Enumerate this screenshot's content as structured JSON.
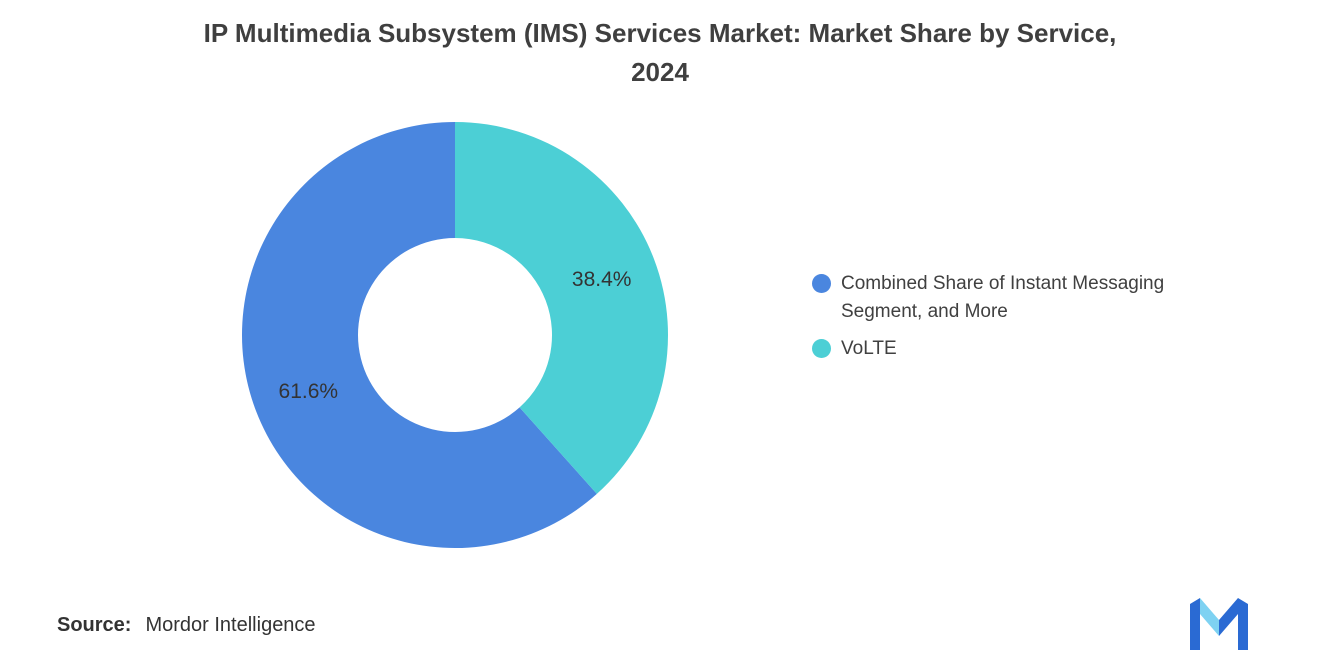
{
  "title": {
    "line1": "IP Multimedia Subsystem (IMS) Services Market: Market Share by Service,",
    "line2": "2024"
  },
  "chart_data": {
    "type": "pie",
    "donut": true,
    "title": "IP Multimedia Subsystem (IMS) Services Market: Market Share by Service, 2024",
    "categories": [
      "Combined Share of Instant Messaging Segment, and More",
      "VoLTE"
    ],
    "values": [
      61.6,
      38.4
    ],
    "labels": [
      "61.6%",
      "38.4%"
    ],
    "colors": [
      "#4A86DF",
      "#4CCFD5"
    ],
    "start_angle_deg": -90,
    "direction": "counter-clockwise",
    "legend_position": "right",
    "inner_radius_ratio": 0.455
  },
  "legend": {
    "items": [
      {
        "label": "Combined Share of Instant Messaging Segment, and More",
        "color": "#4A86DF"
      },
      {
        "label": "VoLTE",
        "color": "#4CCFD5"
      }
    ]
  },
  "source": {
    "label": "Source:",
    "value": "Mordor Intelligence"
  },
  "logo": {
    "name": "Mordor Intelligence",
    "colors": {
      "dark": "#2A6AD3",
      "light": "#7ED2F2"
    }
  }
}
